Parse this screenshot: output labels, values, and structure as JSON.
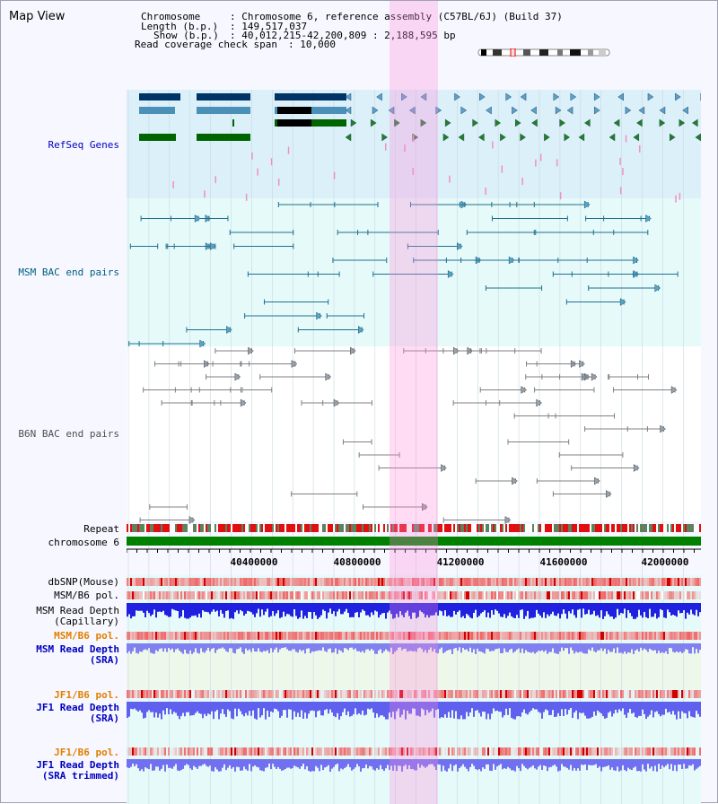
{
  "window": {
    "title": "Map View"
  },
  "info": {
    "chromosome_key": "Chromosome",
    "chromosome_val": ": Chromosome 6, reference assembly (C57BL/6J) (Build 37)",
    "length_key": "Length (b.p.)",
    "length_val": ": 149,517,037",
    "show_key": "Show (b.p.)",
    "show_val": ": 40,012,215-42,200,809 : 2,188,595 bp",
    "coverage_key": "Read coverage check span",
    "coverage_val": ": 10,000"
  },
  "tracks": {
    "refseq_label": "RefSeq Genes",
    "msm_bac_label": "MSM BAC end pairs",
    "b6n_bac_label": "B6N BAC end pairs",
    "repeat_label": "Repeat",
    "chromosome_label": "chromosome 6",
    "dbsnp_label": "dbSNP(Mouse)",
    "msm_b6_pol_label": "MSM/B6 pol.",
    "msm_read_depth_cap_1": "MSM Read Depth",
    "msm_read_depth_cap_2": "(Capillary)",
    "msm_b6_pol2_label": "MSM/B6 pol.",
    "msm_read_depth_sra_1": "MSM Read Depth",
    "msm_read_depth_sra_2": "(SRA)",
    "jf1_pol_label": "JF1/B6 pol.",
    "jf1_read_depth_1": "JF1 Read Depth",
    "jf1_read_depth_2": "(SRA)",
    "jf1_pol2_label": "JF1/B6 pol.",
    "jf1_read_depth_trim_1": "JF1 Read Depth",
    "jf1_read_depth_trim_2": "(SRA trimmed)"
  },
  "axis": {
    "ticks": [
      "40400000",
      "40800000",
      "41200000",
      "41600000",
      "42000000"
    ],
    "range_start": 40012215,
    "range_end": 42200809
  },
  "colors": {
    "refseq_bg": "#dcf0fa",
    "msm_bg": "#e6fafa",
    "highlight": "#ffb4e6",
    "chromosome_bar": "#008000",
    "msm_label": "#006080",
    "b6n_label": "#505050",
    "refseq_label": "#0000c0",
    "pol_label": "#e08000",
    "depth_label": "#0000c0"
  }
}
